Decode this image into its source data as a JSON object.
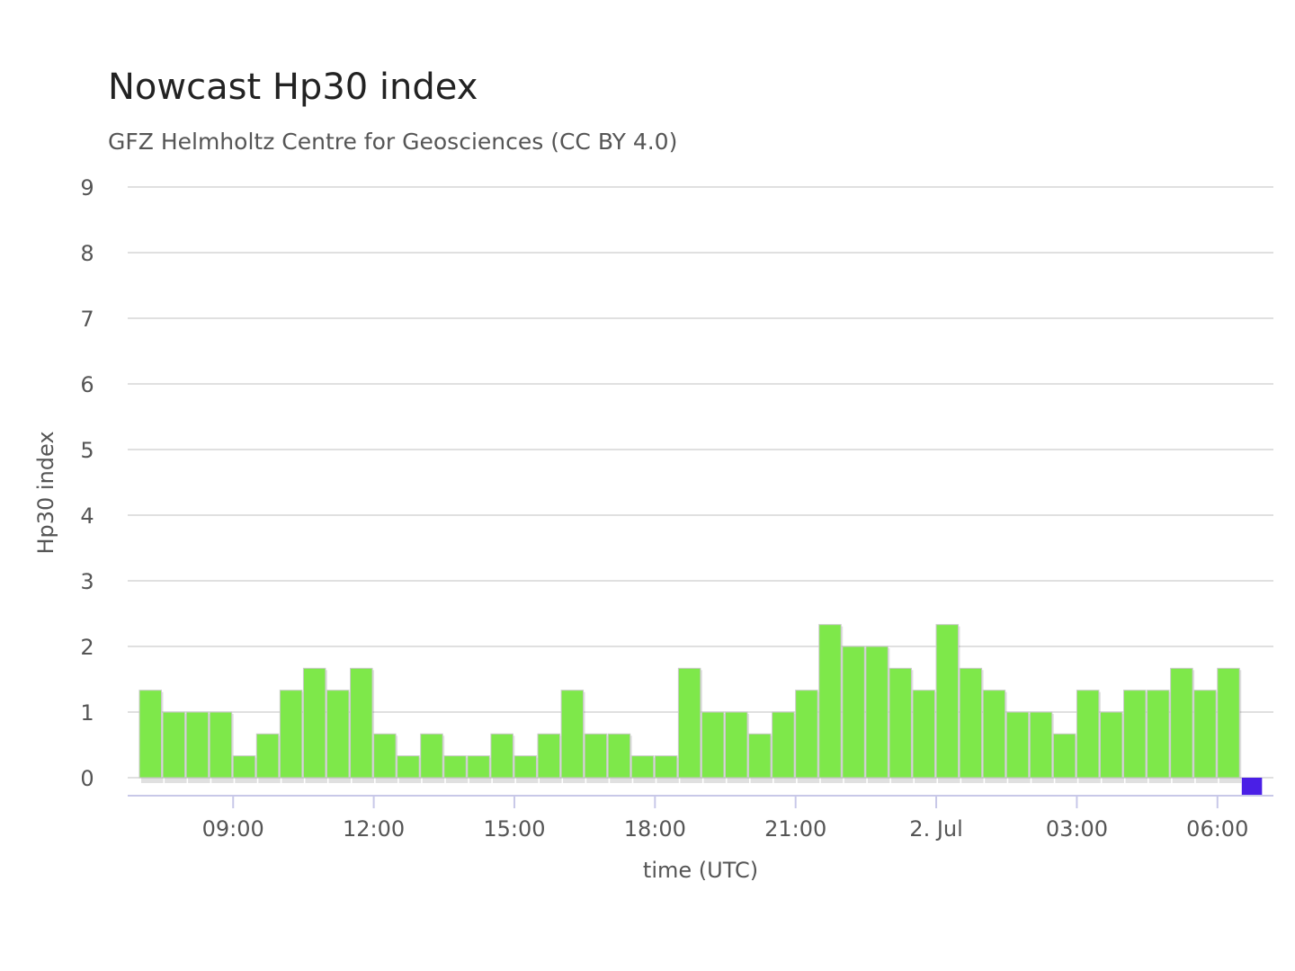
{
  "chart_data": {
    "type": "bar",
    "title": "Nowcast Hp30 index",
    "subtitle": "GFZ Helmholtz Centre for Geosciences (CC BY 4.0)",
    "xlabel": "time (UTC)",
    "ylabel": "Hp30 index",
    "ylim": [
      0,
      9
    ],
    "yticks": [
      0,
      1,
      2,
      3,
      4,
      5,
      6,
      7,
      8,
      9
    ],
    "x_start": "1 Jul 07:00",
    "interval": "30 min",
    "xtick_labels": [
      {
        "at": "09:00",
        "label": "09:00"
      },
      {
        "at": "12:00",
        "label": "12:00"
      },
      {
        "at": "15:00",
        "label": "15:00"
      },
      {
        "at": "18:00",
        "label": "18:00"
      },
      {
        "at": "21:00",
        "label": "21:00"
      },
      {
        "at": "00:00",
        "label": "2. Jul"
      },
      {
        "at": "03:00",
        "label": "03:00"
      },
      {
        "at": "06:00",
        "label": "06:00"
      }
    ],
    "colors": {
      "bar": "#7ee84a",
      "highlight": "#4a1fe6",
      "grid": "#e0e0e0",
      "axis": "#c8c8e8"
    },
    "grid": true,
    "legend": "none",
    "series": [
      {
        "values": [
          1.333,
          1,
          1,
          1,
          0.333,
          0.667,
          1.333,
          1.667,
          1.333,
          1.667,
          0.667,
          0.333,
          0.667,
          0.333,
          0.333,
          0.667,
          0.333,
          0.667,
          1.333,
          0.667,
          0.667,
          0.333,
          0.333,
          1.667,
          1,
          1,
          0.667,
          1,
          1.333,
          2.333,
          2,
          2,
          1.667,
          1.333,
          2.333,
          1.667,
          1.333,
          1,
          1,
          0.667,
          1.333,
          1,
          1.333,
          1.333,
          1.667,
          1.333,
          1.667,
          0
        ]
      }
    ],
    "highlight_index": 47
  }
}
